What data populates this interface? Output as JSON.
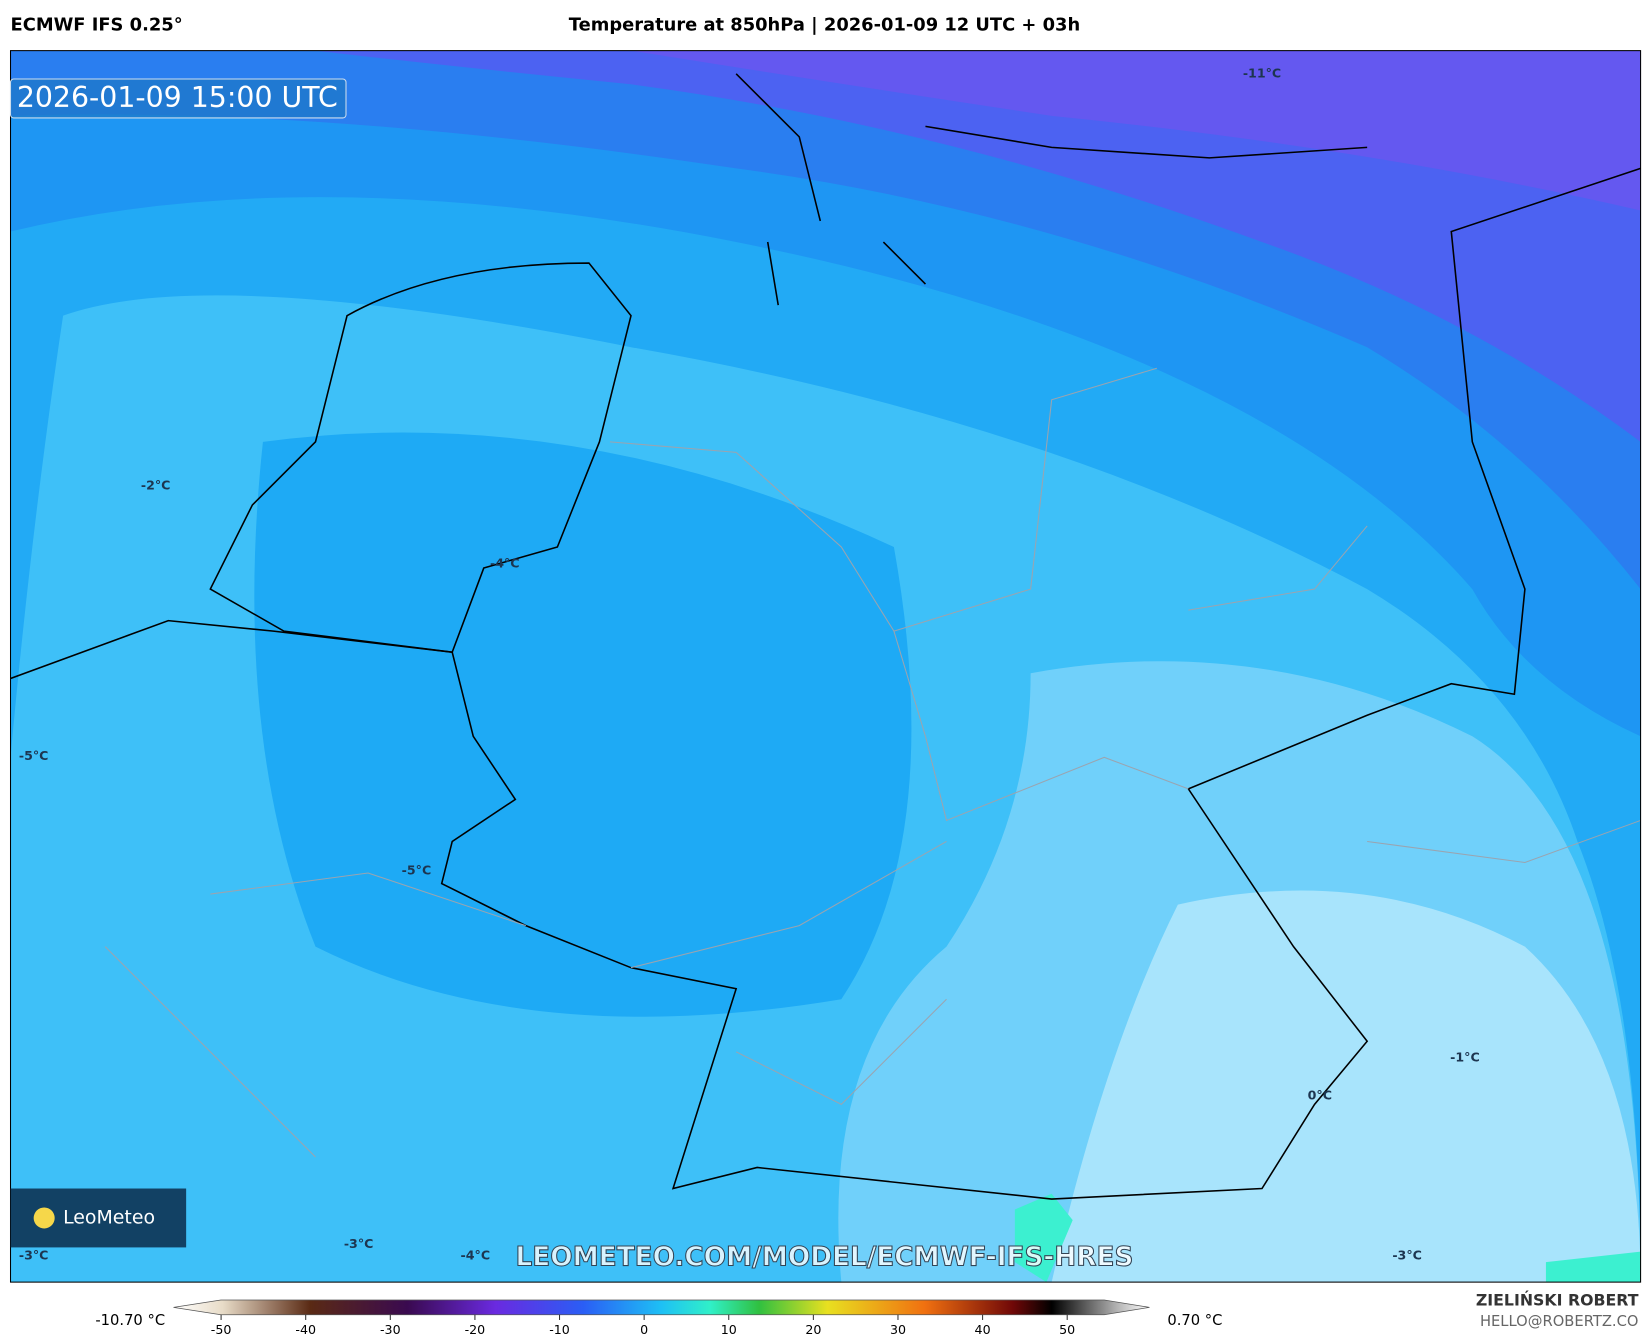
{
  "header": {
    "model": "ECMWF IFS 0.25°",
    "title": "Temperature at 850hPa | 2026-01-09 12 UTC + 03h"
  },
  "map": {
    "valid_time": "2026-01-09 15:00 UTC",
    "watermark": "LEOMETEO.COM/MODEL/ECMWF-IFS-HRES",
    "logo": "LeoMeteo",
    "contour_labels": [
      "-11°C",
      "-2°C",
      "-4°C",
      "-5°C",
      "-5°C",
      "-1°C",
      "0°C",
      "-3°C",
      "-3°C",
      "-4°C",
      "-3°C"
    ]
  },
  "colorbar": {
    "min_label": "-10.70 °C",
    "max_label": "0.70 °C",
    "xlim": [
      -55,
      55
    ],
    "ticks": [
      -50,
      -40,
      -30,
      -20,
      -10,
      0,
      10,
      20,
      30,
      40,
      50
    ]
  },
  "footer": {
    "author": "ZIELIŃSKI ROBERT",
    "email": "HELLO@ROBERTZ.CO"
  }
}
